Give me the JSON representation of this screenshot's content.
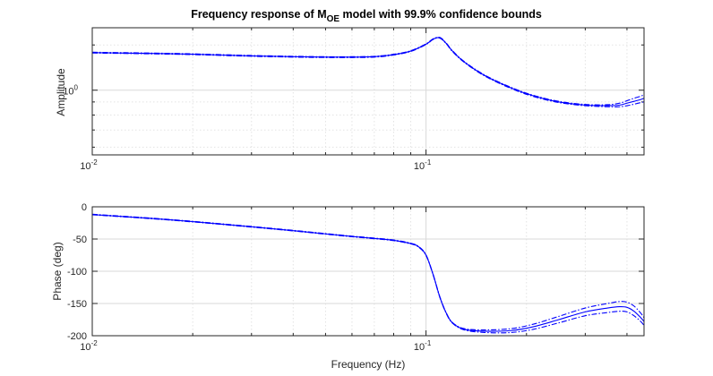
{
  "chart_data": {
    "title": {
      "prefix": "Frequency response of M",
      "subscript": "OE",
      "suffix": " model with 99.9% confidence bounds"
    },
    "xlabel": "Frequency (Hz)",
    "line_color": "#0000ff",
    "x_tick_labels": [
      {
        "x": 0.01,
        "base": "10",
        "exp": "-2"
      },
      {
        "x": 0.1,
        "base": "10",
        "exp": "-1"
      }
    ],
    "subplots": [
      {
        "type": "line",
        "ylabel": "Amplitude",
        "x_scale": "log",
        "y_scale": "log",
        "xlim": [
          0.01,
          0.45
        ],
        "ylim": [
          0.56,
          1.75
        ],
        "grid": true,
        "y_tick_labels": [
          {
            "y": 1,
            "base": "10",
            "exp": "0"
          }
        ],
        "series": [
          {
            "style": "solid",
            "x": [
              0.01,
              0.015,
              0.02,
              0.03,
              0.04,
              0.05,
              0.06,
              0.07,
              0.08,
              0.09,
              0.1,
              0.105,
              0.11,
              0.115,
              0.12,
              0.13,
              0.15,
              0.18,
              0.21,
              0.25,
              0.3,
              0.35,
              0.38,
              0.4,
              0.42,
              0.44,
              0.45
            ],
            "y": [
              1.4,
              1.39,
              1.38,
              1.36,
              1.35,
              1.345,
              1.345,
              1.35,
              1.375,
              1.42,
              1.51,
              1.58,
              1.6,
              1.52,
              1.42,
              1.29,
              1.14,
              1.02,
              0.95,
              0.9,
              0.875,
              0.87,
              0.875,
              0.89,
              0.905,
              0.92,
              0.93
            ]
          },
          {
            "style": "dashdot",
            "x": [
              0.01,
              0.015,
              0.02,
              0.03,
              0.04,
              0.05,
              0.06,
              0.07,
              0.08,
              0.09,
              0.1,
              0.105,
              0.11,
              0.115,
              0.12,
              0.13,
              0.15,
              0.18,
              0.21,
              0.25,
              0.3,
              0.35,
              0.38,
              0.4,
              0.42,
              0.44,
              0.45
            ],
            "y": [
              1.405,
              1.395,
              1.385,
              1.365,
              1.355,
              1.35,
              1.35,
              1.355,
              1.38,
              1.425,
              1.515,
              1.585,
              1.605,
              1.525,
              1.425,
              1.295,
              1.145,
              1.025,
              0.955,
              0.905,
              0.88,
              0.878,
              0.89,
              0.91,
              0.93,
              0.948,
              0.96
            ]
          },
          {
            "style": "dashdot",
            "x": [
              0.01,
              0.015,
              0.02,
              0.03,
              0.04,
              0.05,
              0.06,
              0.07,
              0.08,
              0.09,
              0.1,
              0.105,
              0.11,
              0.115,
              0.12,
              0.13,
              0.15,
              0.18,
              0.21,
              0.25,
              0.3,
              0.35,
              0.38,
              0.4,
              0.42,
              0.44,
              0.45
            ],
            "y": [
              1.395,
              1.385,
              1.375,
              1.355,
              1.345,
              1.34,
              1.34,
              1.345,
              1.37,
              1.415,
              1.505,
              1.575,
              1.595,
              1.515,
              1.415,
              1.285,
              1.135,
              1.015,
              0.945,
              0.895,
              0.87,
              0.862,
              0.862,
              0.87,
              0.882,
              0.895,
              0.9
            ]
          }
        ]
      },
      {
        "type": "line",
        "ylabel": "Phase (deg)",
        "x_scale": "log",
        "y_scale": "linear",
        "xlim": [
          0.01,
          0.45
        ],
        "ylim": [
          -200,
          0
        ],
        "grid": true,
        "y_ticks": [
          0,
          -50,
          -100,
          -150,
          -200
        ],
        "series": [
          {
            "style": "solid",
            "x": [
              0.01,
              0.015,
              0.02,
              0.03,
              0.04,
              0.05,
              0.06,
              0.07,
              0.08,
              0.09,
              0.095,
              0.1,
              0.105,
              0.11,
              0.115,
              0.12,
              0.13,
              0.15,
              0.18,
              0.21,
              0.25,
              0.3,
              0.35,
              0.38,
              0.4,
              0.42,
              0.44,
              0.45
            ],
            "y": [
              -12,
              -18,
              -23,
              -31,
              -37,
              -42,
              -46,
              -49,
              -52,
              -57,
              -62,
              -75,
              -105,
              -140,
              -165,
              -180,
              -190,
              -193,
              -192,
              -186,
              -175,
              -163,
              -157,
              -155,
              -156,
              -162,
              -172,
              -178
            ]
          },
          {
            "style": "dashdot",
            "x": [
              0.01,
              0.015,
              0.02,
              0.03,
              0.04,
              0.05,
              0.06,
              0.07,
              0.08,
              0.09,
              0.095,
              0.1,
              0.105,
              0.11,
              0.115,
              0.12,
              0.13,
              0.15,
              0.18,
              0.21,
              0.25,
              0.3,
              0.35,
              0.38,
              0.4,
              0.42,
              0.44,
              0.45
            ],
            "y": [
              -11.5,
              -17.5,
              -22.5,
              -30.5,
              -36.5,
              -41.5,
              -45.5,
              -48.5,
              -51.5,
              -56.5,
              -61.5,
              -74.5,
              -104.5,
              -139.5,
              -164.5,
              -179.5,
              -189,
              -191,
              -189,
              -182,
              -170,
              -157,
              -150,
              -147,
              -148,
              -154,
              -165,
              -172
            ]
          },
          {
            "style": "dashdot",
            "x": [
              0.01,
              0.015,
              0.02,
              0.03,
              0.04,
              0.05,
              0.06,
              0.07,
              0.08,
              0.09,
              0.095,
              0.1,
              0.105,
              0.11,
              0.115,
              0.12,
              0.13,
              0.15,
              0.18,
              0.21,
              0.25,
              0.3,
              0.35,
              0.38,
              0.4,
              0.42,
              0.44,
              0.45
            ],
            "y": [
              -12.5,
              -18.5,
              -23.5,
              -31.5,
              -37.5,
              -42.5,
              -46.5,
              -49.5,
              -52.5,
              -57.5,
              -62.5,
              -75.5,
              -105.5,
              -140.5,
              -165.5,
              -180.5,
              -191,
              -195,
              -195,
              -190,
              -180,
              -169,
              -164,
              -162,
              -163,
              -169,
              -178,
              -184
            ]
          }
        ]
      }
    ]
  }
}
